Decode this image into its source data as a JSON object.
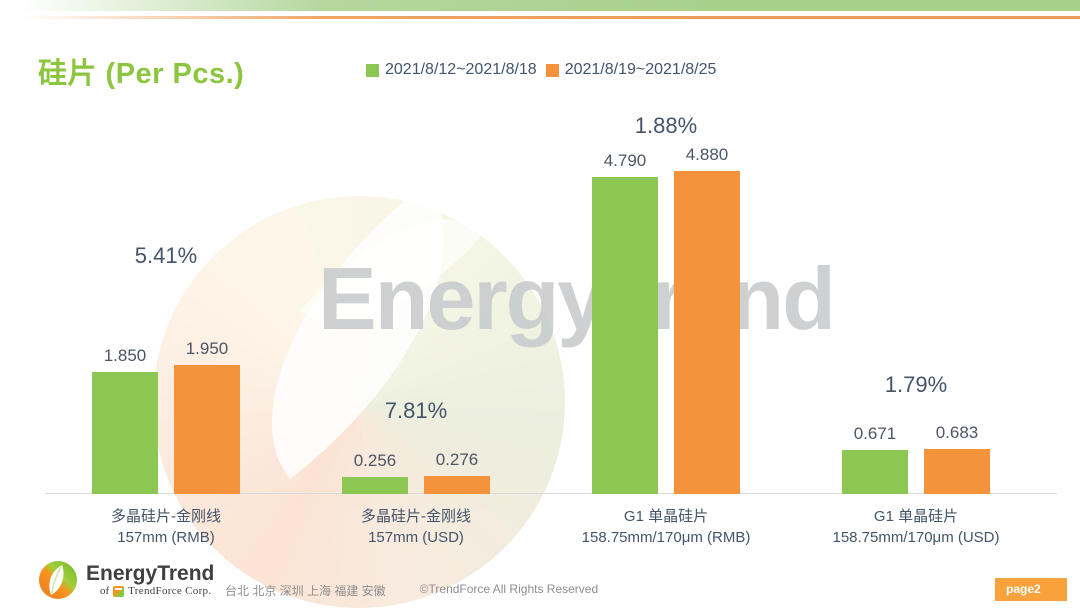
{
  "page": {
    "title": "硅片 (Per Pcs.)",
    "watermark_text": "EnergyTrend",
    "page_badge": "page2"
  },
  "legend": [
    {
      "label": "2021/8/12~2021/8/18",
      "color": "#8CC653"
    },
    {
      "label": "2021/8/19~2021/8/25",
      "color": "#F5933C"
    }
  ],
  "chart_data": {
    "type": "bar",
    "title": "硅片 (Per Pcs.)",
    "categories": [
      [
        "多晶硅片-金刚线",
        "157mm (RMB)"
      ],
      [
        "多晶硅片-金刚线",
        "157mm (USD)"
      ],
      [
        "G1 单晶硅片",
        "158.75mm/170μm (RMB)"
      ],
      [
        "G1 单晶硅片",
        "158.75mm/170μm (USD)"
      ]
    ],
    "series": [
      {
        "name": "2021/8/12~2021/8/18",
        "color": "#8CC653",
        "values": [
          1.85,
          0.256,
          4.79,
          0.671
        ],
        "value_labels": [
          "1.850",
          "0.256",
          "4.790",
          "0.671"
        ]
      },
      {
        "name": "2021/8/19~2021/8/25",
        "color": "#F5933C",
        "values": [
          1.95,
          0.276,
          4.88,
          0.683
        ],
        "value_labels": [
          "1.950",
          "0.276",
          "4.880",
          "0.683"
        ]
      }
    ],
    "pct_change_labels": [
      "5.41%",
      "7.81%",
      "1.88%",
      "1.79%"
    ],
    "ylim": [
      0,
      5.2
    ],
    "grid": false,
    "legend_position": "top",
    "axis_color": "#D9D9D9",
    "label_color": "#44546A"
  },
  "footer": {
    "logo_title": "EnergyTrend",
    "logo_subtitle_prefix": "of",
    "logo_subtitle": "TrendForce Corp.",
    "locations": "台北 北京 深圳 上海 福建 安徽",
    "copyright": "©TrendForce All Rights Reserved"
  }
}
